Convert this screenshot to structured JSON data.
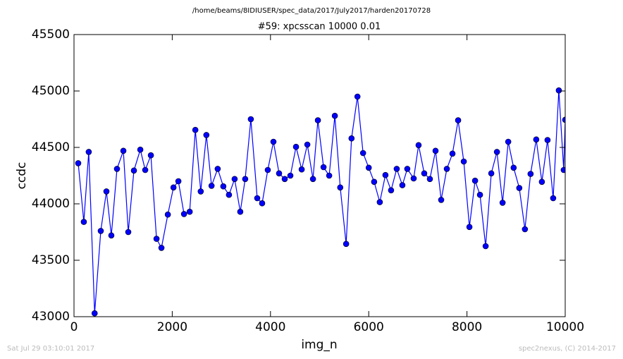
{
  "chart_data": {
    "type": "line",
    "suptitle": "/home/beams/8IDIUSER/spec_data/2017/July2017/harden20170728",
    "title": "#59: xpcsscan 10000 0.01",
    "xlabel": "img_n",
    "ylabel": "ccdc",
    "footer_left": "Sat Jul 29 03:10:01 2017",
    "footer_right": "spec2nexus, (C) 2014-2017",
    "xlim": [
      0,
      10000
    ],
    "xticks": [
      0,
      2000,
      4000,
      6000,
      8000,
      10000
    ],
    "ylim": [
      43000,
      45500
    ],
    "yticks": [
      43000,
      43500,
      44000,
      44500,
      45000,
      45500
    ],
    "series": [
      {
        "color": "#0000ff",
        "x": [
          86,
          200,
          300,
          420,
          545,
          660,
          760,
          875,
          1005,
          1105,
          1220,
          1350,
          1450,
          1565,
          1680,
          1780,
          1910,
          2025,
          2125,
          2240,
          2355,
          2470,
          2580,
          2695,
          2800,
          2925,
          3040,
          3155,
          3270,
          3385,
          3485,
          3600,
          3730,
          3830,
          3945,
          4060,
          4175,
          4290,
          4405,
          4520,
          4635,
          4750,
          4865,
          4965,
          5080,
          5195,
          5310,
          5420,
          5540,
          5650,
          5770,
          5885,
          6000,
          6110,
          6225,
          6340,
          6455,
          6570,
          6685,
          6785,
          6915,
          7015,
          7130,
          7245,
          7360,
          7475,
          7590,
          7705,
          7820,
          7935,
          8050,
          8165,
          8265,
          8380,
          8495,
          8610,
          8725,
          8840,
          8950,
          9065,
          9180,
          9295,
          9410,
          9525,
          9640,
          9755,
          9870,
          9970,
          10000
        ],
        "values": [
          44360,
          43840,
          44460,
          43030,
          43760,
          44110,
          43720,
          44310,
          44470,
          43750,
          44295,
          44480,
          44300,
          44430,
          43690,
          43610,
          43905,
          44145,
          44200,
          43910,
          43930,
          44655,
          44110,
          44610,
          44160,
          44310,
          44155,
          44080,
          44220,
          43930,
          44220,
          44750,
          44050,
          44005,
          44300,
          44550,
          44270,
          44220,
          44250,
          44505,
          44305,
          44525,
          44220,
          44740,
          44325,
          44250,
          44780,
          44145,
          43645,
          44580,
          44950,
          44450,
          44320,
          44195,
          44015,
          44255,
          44120,
          44310,
          44165,
          44310,
          44225,
          44520,
          44270,
          44220,
          44470,
          44035,
          44310,
          44445,
          44740,
          44375,
          43795,
          44205,
          44080,
          43625,
          44270,
          44460,
          44010,
          44550,
          44320,
          44140,
          43775,
          44265,
          44570,
          44195,
          44565,
          44050,
          45005,
          44300,
          44745
        ]
      }
    ]
  }
}
